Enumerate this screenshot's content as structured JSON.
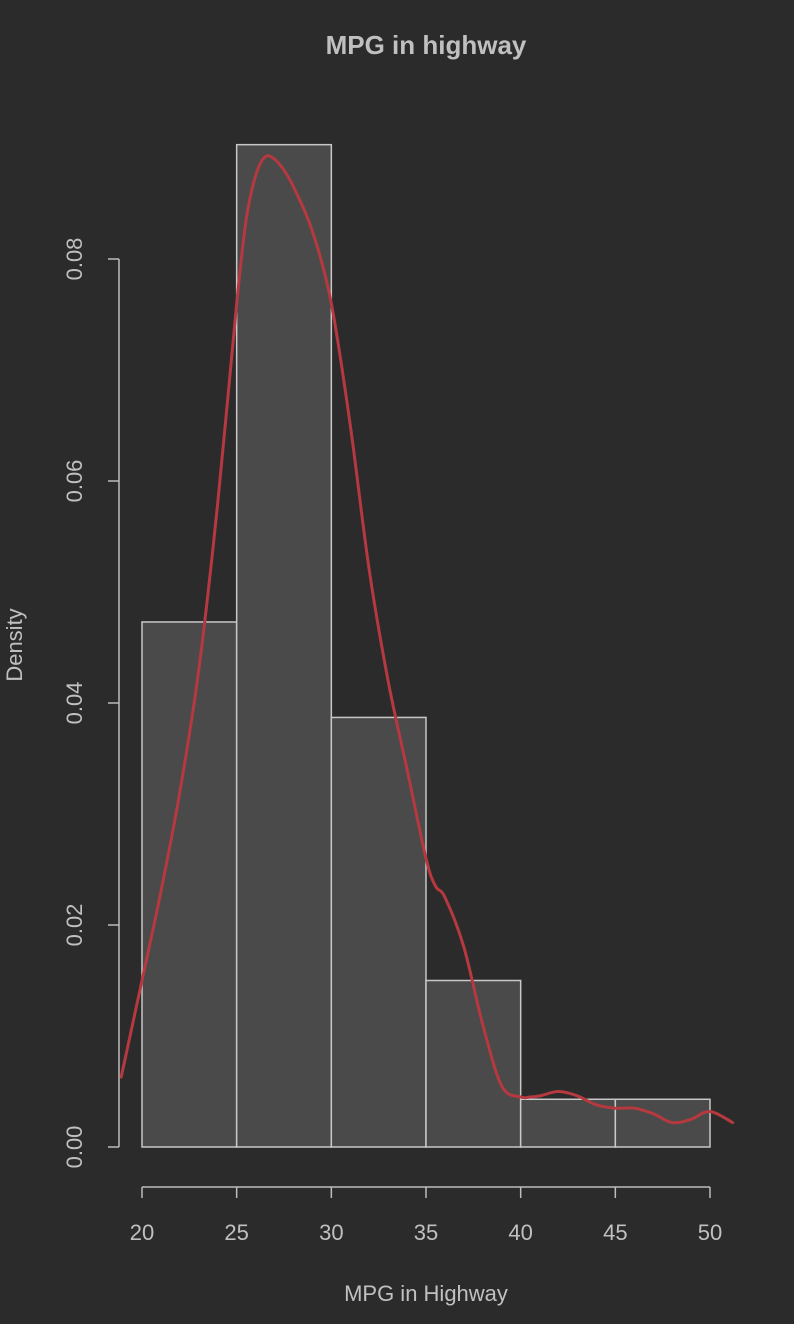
{
  "chart_data": {
    "type": "bar",
    "title": "MPG in highway",
    "xlabel": "MPG in Highway",
    "ylabel": "Density",
    "bins": [
      {
        "from": 20,
        "to": 25,
        "density": 0.0473
      },
      {
        "from": 25,
        "to": 30,
        "density": 0.0903
      },
      {
        "from": 30,
        "to": 35,
        "density": 0.0387
      },
      {
        "from": 35,
        "to": 40,
        "density": 0.015
      },
      {
        "from": 40,
        "to": 45,
        "density": 0.0043
      },
      {
        "from": 45,
        "to": 50,
        "density": 0.0043
      }
    ],
    "density_curve": {
      "x": [
        18.9,
        20,
        21,
        22,
        23,
        24,
        25,
        25.5,
        26,
        26.5,
        27,
        27.5,
        28,
        29,
        30,
        31,
        32,
        33,
        34,
        35,
        35.5,
        36,
        37,
        38,
        39,
        40,
        40.5,
        41,
        42,
        43,
        44,
        45,
        46,
        47,
        48,
        49,
        50,
        51.2
      ],
      "y": [
        0.0063,
        0.015,
        0.023,
        0.032,
        0.043,
        0.058,
        0.076,
        0.0835,
        0.0875,
        0.0892,
        0.089,
        0.088,
        0.0865,
        0.0825,
        0.076,
        0.065,
        0.052,
        0.042,
        0.034,
        0.026,
        0.0235,
        0.0225,
        0.018,
        0.011,
        0.0055,
        0.0045,
        0.0045,
        0.0046,
        0.005,
        0.0046,
        0.0038,
        0.0035,
        0.0035,
        0.003,
        0.0022,
        0.0025,
        0.0032,
        0.0022
      ]
    },
    "xticks": [
      20,
      25,
      30,
      35,
      40,
      45,
      50
    ],
    "yticks": [
      "0.00",
      "0.02",
      "0.04",
      "0.06",
      "0.08"
    ],
    "xlim": [
      20,
      50
    ],
    "ylim": [
      0,
      0.08
    ],
    "grid": false,
    "legend": "none",
    "colors": {
      "background": "#2b2b2b",
      "bar_fill": "#4a4a4a",
      "bar_border": "#c8c8c8",
      "curve": "#b5393f",
      "axis": "#bdbdbd",
      "text": "#c0c0c0"
    }
  }
}
